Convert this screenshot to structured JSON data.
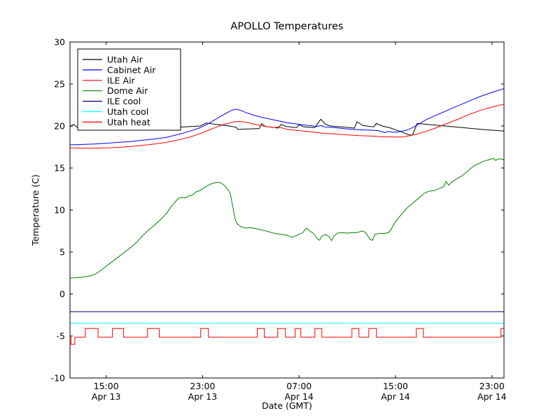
{
  "chart_data": {
    "type": "line",
    "title": "APOLLO Temperatures",
    "xlabel": "Date (GMT)",
    "ylabel": "Temperature (C)",
    "ylim": [
      -10,
      30
    ],
    "xlim_hours_from_apr13_1200": [
      0,
      36
    ],
    "grid": false,
    "legend_position": "upper left",
    "y_ticks": [
      30,
      25,
      20,
      15,
      10,
      5,
      0,
      -5,
      -10
    ],
    "x_ticks": [
      {
        "t": 3,
        "time": "15:00",
        "date": "Apr 13"
      },
      {
        "t": 11,
        "time": "23:00",
        "date": "Apr 13"
      },
      {
        "t": 19,
        "time": "07:00",
        "date": "Apr 14"
      },
      {
        "t": 27,
        "time": "15:00",
        "date": "Apr 14"
      },
      {
        "t": 35,
        "time": "23:00",
        "date": "Apr 14"
      }
    ],
    "series": [
      {
        "name": "Utah Air",
        "color": "#000000",
        "points": [
          [
            0,
            19.9
          ],
          [
            0.3,
            20.2
          ],
          [
            0.6,
            19.85
          ],
          [
            2,
            19.75
          ],
          [
            4,
            19.7
          ],
          [
            6,
            19.75
          ],
          [
            8,
            19.8
          ],
          [
            9.5,
            19.9
          ],
          [
            10.8,
            20.0
          ],
          [
            11.3,
            20.35
          ],
          [
            11.8,
            20.25
          ],
          [
            12.4,
            20.15
          ],
          [
            13.2,
            20.0
          ],
          [
            13.8,
            19.85
          ],
          [
            13.9,
            19.6
          ],
          [
            14.8,
            19.65
          ],
          [
            15.7,
            19.7
          ],
          [
            15.9,
            20.3
          ],
          [
            16.2,
            19.95
          ],
          [
            17.3,
            19.75
          ],
          [
            17.5,
            20.2
          ],
          [
            17.9,
            19.95
          ],
          [
            18.8,
            19.8
          ],
          [
            19.0,
            20.15
          ],
          [
            19.4,
            19.9
          ],
          [
            20.3,
            19.8
          ],
          [
            20.8,
            20.8
          ],
          [
            21.2,
            20.2
          ],
          [
            21.6,
            20.0
          ],
          [
            22.5,
            19.9
          ],
          [
            23.6,
            19.75
          ],
          [
            23.8,
            20.5
          ],
          [
            24.3,
            20.05
          ],
          [
            25.2,
            19.9
          ],
          [
            25.4,
            20.3
          ],
          [
            25.9,
            20.0
          ],
          [
            26.5,
            19.8
          ],
          [
            27.3,
            19.4
          ],
          [
            28.0,
            19.0
          ],
          [
            28.4,
            18.9
          ],
          [
            28.6,
            19.6
          ],
          [
            28.8,
            20.3
          ],
          [
            30,
            20.15
          ],
          [
            31.5,
            19.95
          ],
          [
            33,
            19.75
          ],
          [
            34.5,
            19.55
          ],
          [
            36,
            19.4
          ]
        ]
      },
      {
        "name": "Cabinet Air",
        "color": "#0000ff",
        "points": [
          [
            0,
            17.75
          ],
          [
            1,
            17.8
          ],
          [
            2,
            17.85
          ],
          [
            3,
            17.95
          ],
          [
            4,
            18.05
          ],
          [
            5,
            18.15
          ],
          [
            6,
            18.3
          ],
          [
            7,
            18.45
          ],
          [
            8,
            18.65
          ],
          [
            9,
            19.0
          ],
          [
            10,
            19.4
          ],
          [
            10.8,
            19.8
          ],
          [
            11.5,
            20.3
          ],
          [
            12.2,
            20.9
          ],
          [
            12.8,
            21.4
          ],
          [
            13.3,
            21.8
          ],
          [
            13.7,
            22.0
          ],
          [
            14.1,
            21.9
          ],
          [
            14.6,
            21.6
          ],
          [
            15.2,
            21.3
          ],
          [
            16,
            21.0
          ],
          [
            17,
            20.7
          ],
          [
            18,
            20.4
          ],
          [
            19,
            20.2
          ],
          [
            19.8,
            20.05
          ],
          [
            20.5,
            19.95
          ],
          [
            20.8,
            20.05
          ],
          [
            21.1,
            19.9
          ],
          [
            22,
            19.8
          ],
          [
            23,
            19.65
          ],
          [
            24,
            19.55
          ],
          [
            25,
            19.5
          ],
          [
            25.6,
            19.45
          ],
          [
            26.1,
            19.2
          ],
          [
            26.4,
            19.35
          ],
          [
            26.8,
            19.25
          ],
          [
            27.2,
            19.3
          ],
          [
            27.6,
            19.4
          ],
          [
            28,
            19.55
          ],
          [
            28.4,
            19.8
          ],
          [
            29,
            20.3
          ],
          [
            29.6,
            20.8
          ],
          [
            30.4,
            21.3
          ],
          [
            31.2,
            21.8
          ],
          [
            32,
            22.3
          ],
          [
            33,
            22.9
          ],
          [
            34,
            23.5
          ],
          [
            35,
            24.0
          ],
          [
            36,
            24.45
          ]
        ]
      },
      {
        "name": "ILE Air",
        "color": "#ff0000",
        "points": [
          [
            0,
            17.4
          ],
          [
            1,
            17.35
          ],
          [
            2,
            17.35
          ],
          [
            3,
            17.4
          ],
          [
            4,
            17.45
          ],
          [
            5,
            17.55
          ],
          [
            6,
            17.7
          ],
          [
            7,
            17.85
          ],
          [
            8,
            18.05
          ],
          [
            9,
            18.35
          ],
          [
            10,
            18.7
          ],
          [
            10.8,
            19.1
          ],
          [
            11.5,
            19.5
          ],
          [
            12.2,
            19.9
          ],
          [
            12.9,
            20.25
          ],
          [
            13.6,
            20.5
          ],
          [
            14.1,
            20.55
          ],
          [
            14.6,
            20.45
          ],
          [
            15.2,
            20.25
          ],
          [
            16,
            20.0
          ],
          [
            17,
            19.8
          ],
          [
            17.3,
            19.9
          ],
          [
            17.6,
            19.75
          ],
          [
            18,
            19.6
          ],
          [
            19,
            19.45
          ],
          [
            20,
            19.3
          ],
          [
            21,
            19.15
          ],
          [
            22,
            19.05
          ],
          [
            23,
            18.95
          ],
          [
            24,
            18.85
          ],
          [
            25,
            18.8
          ],
          [
            26,
            18.72
          ],
          [
            27,
            18.68
          ],
          [
            27.6,
            18.7
          ],
          [
            28.2,
            18.85
          ],
          [
            28.8,
            19.05
          ],
          [
            29.5,
            19.35
          ],
          [
            30.3,
            19.75
          ],
          [
            31.1,
            20.2
          ],
          [
            32,
            20.7
          ],
          [
            33,
            21.3
          ],
          [
            34,
            21.85
          ],
          [
            35,
            22.25
          ],
          [
            36,
            22.6
          ]
        ]
      },
      {
        "name": "Dome Air",
        "color": "#008000",
        "points": [
          [
            0,
            1.9
          ],
          [
            0.5,
            1.95
          ],
          [
            1,
            2.0
          ],
          [
            1.5,
            2.1
          ],
          [
            2,
            2.3
          ],
          [
            2.5,
            2.75
          ],
          [
            3,
            3.3
          ],
          [
            3.5,
            3.85
          ],
          [
            4,
            4.4
          ],
          [
            4.5,
            4.95
          ],
          [
            5,
            5.5
          ],
          [
            5.5,
            6.1
          ],
          [
            6,
            6.9
          ],
          [
            6.5,
            7.6
          ],
          [
            7,
            8.2
          ],
          [
            7.5,
            8.85
          ],
          [
            8,
            9.6
          ],
          [
            8.5,
            10.6
          ],
          [
            9,
            11.4
          ],
          [
            9.3,
            11.5
          ],
          [
            9.6,
            11.45
          ],
          [
            9.9,
            11.7
          ],
          [
            10.2,
            11.8
          ],
          [
            10.5,
            12.2
          ],
          [
            10.8,
            12.3
          ],
          [
            11,
            12.55
          ],
          [
            11.3,
            12.8
          ],
          [
            11.6,
            13.05
          ],
          [
            11.9,
            13.2
          ],
          [
            12.2,
            13.3
          ],
          [
            12.5,
            13.25
          ],
          [
            12.8,
            12.95
          ],
          [
            13.1,
            12.45
          ],
          [
            13.3,
            11.9
          ],
          [
            13.5,
            10.4
          ],
          [
            13.7,
            8.9
          ],
          [
            13.9,
            8.3
          ],
          [
            14.2,
            8.0
          ],
          [
            14.6,
            7.85
          ],
          [
            15,
            7.9
          ],
          [
            15.5,
            7.75
          ],
          [
            16,
            7.6
          ],
          [
            16.5,
            7.4
          ],
          [
            17,
            7.2
          ],
          [
            17.5,
            7.1
          ],
          [
            18,
            7.0
          ],
          [
            18.4,
            6.75
          ],
          [
            18.7,
            6.9
          ],
          [
            19,
            7.1
          ],
          [
            19.3,
            7.3
          ],
          [
            19.6,
            7.85
          ],
          [
            19.9,
            7.5
          ],
          [
            20.2,
            7.2
          ],
          [
            20.5,
            6.6
          ],
          [
            20.7,
            6.4
          ],
          [
            20.9,
            6.9
          ],
          [
            21.2,
            7.1
          ],
          [
            21.5,
            6.8
          ],
          [
            21.7,
            6.35
          ],
          [
            21.9,
            6.9
          ],
          [
            22.2,
            7.25
          ],
          [
            22.6,
            7.3
          ],
          [
            23,
            7.25
          ],
          [
            23.4,
            7.3
          ],
          [
            23.8,
            7.3
          ],
          [
            24.2,
            7.5
          ],
          [
            24.5,
            7.35
          ],
          [
            24.9,
            6.5
          ],
          [
            25.1,
            6.4
          ],
          [
            25.3,
            7.1
          ],
          [
            25.6,
            7.2
          ],
          [
            26,
            7.2
          ],
          [
            26.4,
            7.3
          ],
          [
            26.6,
            7.6
          ],
          [
            27,
            8.6
          ],
          [
            27.5,
            9.5
          ],
          [
            28,
            10.3
          ],
          [
            28.5,
            10.9
          ],
          [
            29,
            11.5
          ],
          [
            29.4,
            12.0
          ],
          [
            29.8,
            12.25
          ],
          [
            30.2,
            12.3
          ],
          [
            30.6,
            12.55
          ],
          [
            31,
            12.8
          ],
          [
            31.2,
            13.4
          ],
          [
            31.4,
            12.95
          ],
          [
            31.7,
            13.35
          ],
          [
            32,
            13.65
          ],
          [
            32.5,
            14.05
          ],
          [
            33,
            14.65
          ],
          [
            33.5,
            15.25
          ],
          [
            34,
            15.6
          ],
          [
            34.4,
            15.85
          ],
          [
            34.8,
            16.0
          ],
          [
            35.1,
            16.15
          ],
          [
            35.3,
            15.9
          ],
          [
            35.6,
            16.1
          ],
          [
            36,
            16.0
          ]
        ]
      },
      {
        "name": "ILE cool",
        "color": "#000080",
        "points": [
          [
            0,
            -2.1
          ],
          [
            36,
            -2.1
          ]
        ]
      },
      {
        "name": "Utah cool",
        "color": "#00ffff",
        "points": [
          [
            0,
            -3.5
          ],
          [
            36,
            -3.5
          ]
        ]
      },
      {
        "name": "Utah heat",
        "color": "#ff0000",
        "points": [
          [
            0,
            -5.15
          ],
          [
            0.08,
            -5.15
          ],
          [
            0.08,
            -6.0
          ],
          [
            0.4,
            -6.0
          ],
          [
            0.4,
            -5.15
          ],
          [
            1.28,
            -5.15
          ],
          [
            1.28,
            -4.1
          ],
          [
            2.33,
            -4.1
          ],
          [
            2.33,
            -5.15
          ],
          [
            3.52,
            -5.15
          ],
          [
            3.52,
            -4.1
          ],
          [
            4.45,
            -4.1
          ],
          [
            4.45,
            -5.15
          ],
          [
            6.43,
            -5.15
          ],
          [
            6.43,
            -4.1
          ],
          [
            7.41,
            -4.1
          ],
          [
            7.41,
            -5.15
          ],
          [
            10.84,
            -5.15
          ],
          [
            10.84,
            -4.1
          ],
          [
            11.48,
            -4.1
          ],
          [
            11.48,
            -5.15
          ],
          [
            15.54,
            -5.15
          ],
          [
            15.54,
            -4.1
          ],
          [
            16.12,
            -4.1
          ],
          [
            16.12,
            -5.15
          ],
          [
            17.23,
            -5.15
          ],
          [
            17.23,
            -4.1
          ],
          [
            17.87,
            -4.1
          ],
          [
            17.87,
            -5.15
          ],
          [
            18.68,
            -5.15
          ],
          [
            18.68,
            -4.1
          ],
          [
            19.15,
            -4.1
          ],
          [
            19.15,
            -5.15
          ],
          [
            20.31,
            -5.15
          ],
          [
            20.31,
            -4.1
          ],
          [
            20.89,
            -4.1
          ],
          [
            20.89,
            -5.15
          ],
          [
            23.39,
            -5.15
          ],
          [
            23.39,
            -4.1
          ],
          [
            23.97,
            -4.1
          ],
          [
            23.97,
            -5.15
          ],
          [
            24.78,
            -5.15
          ],
          [
            24.78,
            -4.1
          ],
          [
            25.42,
            -4.1
          ],
          [
            25.42,
            -5.15
          ],
          [
            28.73,
            -5.15
          ],
          [
            28.73,
            -4.1
          ],
          [
            29.31,
            -4.1
          ],
          [
            29.31,
            -5.15
          ],
          [
            35.75,
            -5.15
          ],
          [
            35.75,
            -4.1
          ],
          [
            36,
            -4.1
          ]
        ]
      }
    ]
  },
  "colors": {
    "background": "#ffffff",
    "frame": "#000000",
    "text": "#000000",
    "legend_background": "#ffffff"
  }
}
